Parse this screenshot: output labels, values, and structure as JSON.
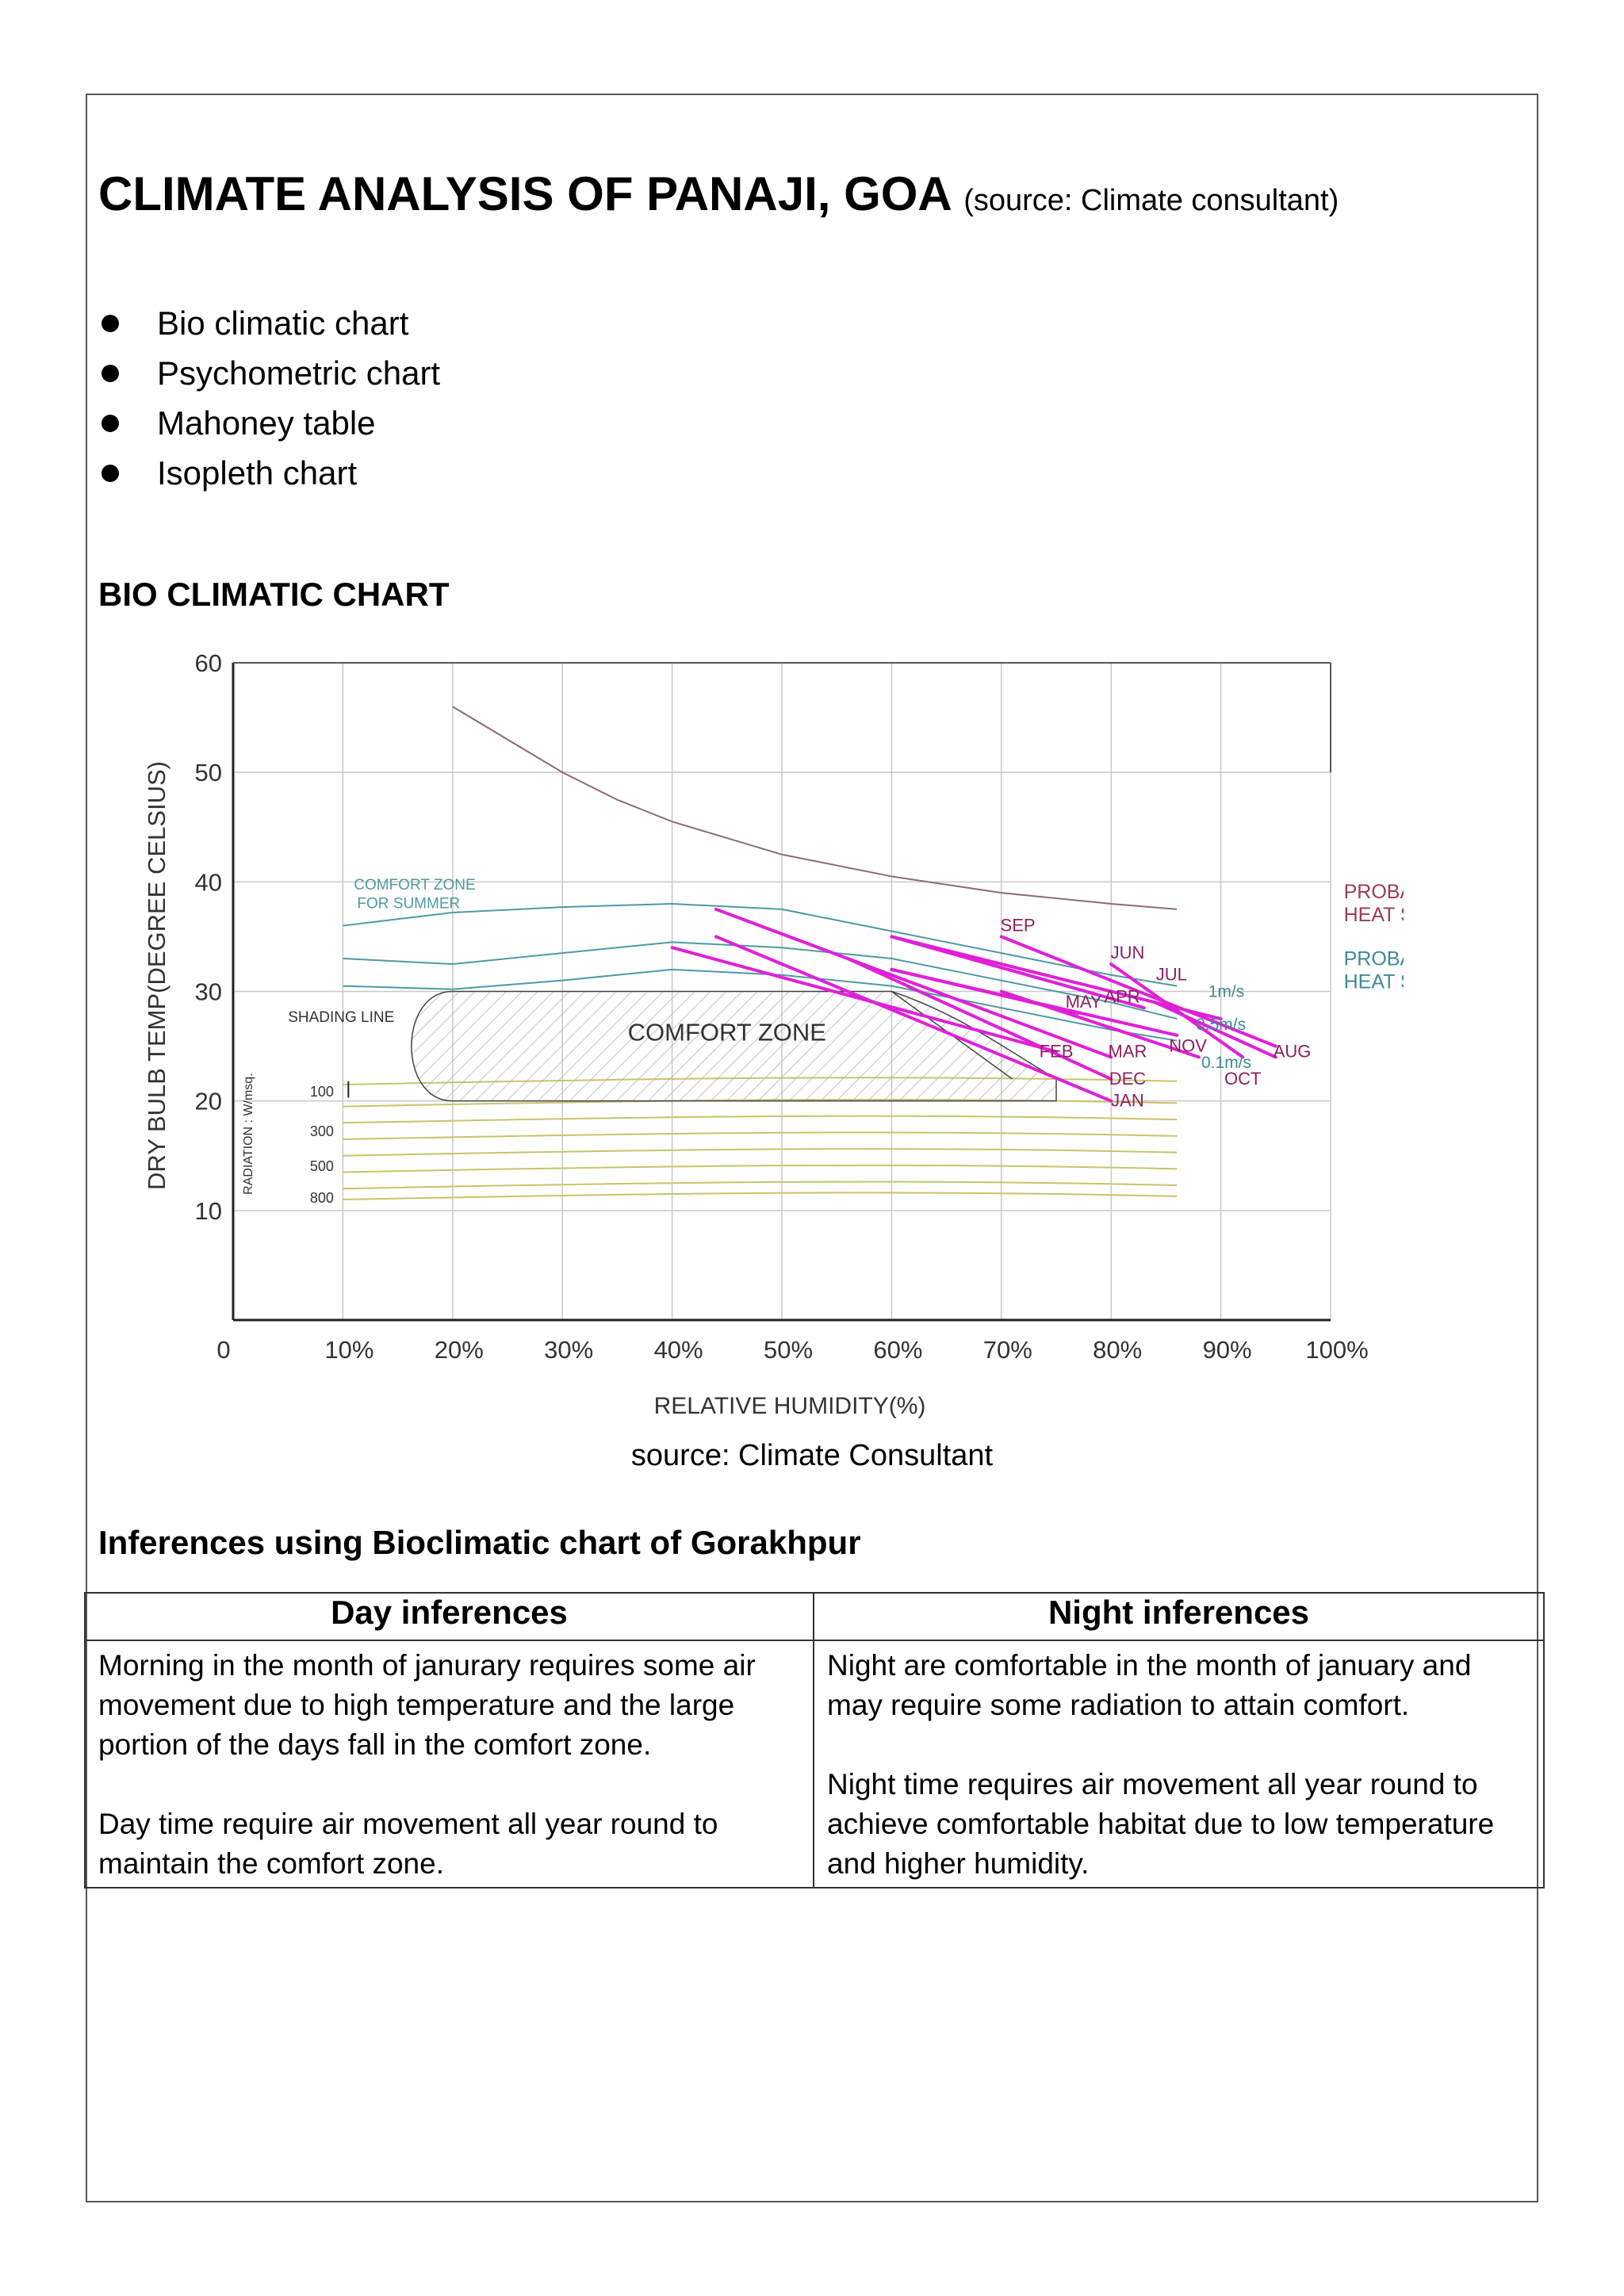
{
  "title": "CLIMATE ANALYSIS OF PANAJI, GOA",
  "title_source": "(source: Climate consultant)",
  "bullets": [
    "Bio climatic chart",
    "Psychometric chart",
    "Mahoney table",
    "Isopleth chart"
  ],
  "section_heading": "BIO CLIMATIC CHART",
  "chart_data": {
    "type": "line",
    "xlabel": "RELATIVE HUMIDITY(%)",
    "ylabel": "DRY BULB TEMP(DEGREE CELSIUS)",
    "xlim": [
      0,
      100
    ],
    "ylim": [
      0,
      60
    ],
    "x_ticks": [
      "0",
      "10%",
      "20%",
      "30%",
      "40%",
      "50%",
      "60%",
      "70%",
      "80%",
      "90%",
      "100%"
    ],
    "y_ticks": [
      "10",
      "20",
      "30",
      "40",
      "50",
      "60"
    ],
    "grid": true,
    "zone_labels": {
      "comfort_zone": "COMFORT ZONE",
      "comfort_summer_1": "COMFORT ZONE",
      "comfort_summer_2": "FOR SUMMER",
      "shading_line": "SHADING LINE",
      "heat_stroke_1a": "PROBABLE",
      "heat_stroke_1b": "HEAT STROKE",
      "heat_stroke_2a": "PROBABLE",
      "heat_stroke_2b": "HEAT STROKE"
    },
    "radiation_label": "RADIATION : W/msq.",
    "radiation_levels": [
      "100",
      "300",
      "500",
      "800"
    ],
    "wind_labels": [
      "1m/s",
      "0.5m/s",
      "0.1m/s"
    ],
    "colors": {
      "months": "#e020d8",
      "heat_stroke_1": "#9c3b55",
      "heat_stroke_2": "#3f8a96",
      "summer_zone": "#4e9aa2",
      "radiation": "#c9c46a",
      "top_curve": "#8a6a7a"
    },
    "series": [
      {
        "name": "JAN",
        "rh": [
          44,
          80
        ],
        "temp": [
          35,
          20
        ]
      },
      {
        "name": "FEB",
        "rh": [
          40,
          75
        ],
        "temp": [
          34,
          24.5
        ]
      },
      {
        "name": "MAR",
        "rh": [
          44,
          80
        ],
        "temp": [
          37.5,
          24
        ]
      },
      {
        "name": "APR",
        "rh": [
          60,
          83
        ],
        "temp": [
          35,
          28.5
        ]
      },
      {
        "name": "MAY",
        "rh": [
          60,
          77
        ],
        "temp": [
          32,
          28
        ]
      },
      {
        "name": "JUN",
        "rh": [
          80,
          92
        ],
        "temp": [
          32.5,
          24
        ]
      },
      {
        "name": "JUL",
        "rh": [
          84,
          95
        ],
        "temp": [
          29,
          24
        ]
      },
      {
        "name": "AUG",
        "rh": [
          70,
          95
        ],
        "temp": [
          35,
          25
        ]
      },
      {
        "name": "SEP",
        "rh": [
          60,
          90
        ],
        "temp": [
          35,
          27.5
        ]
      },
      {
        "name": "OCT",
        "rh": [
          70,
          88
        ],
        "temp": [
          30,
          24
        ]
      },
      {
        "name": "NOV",
        "rh": [
          60,
          86
        ],
        "temp": [
          32,
          26
        ]
      },
      {
        "name": "DEC",
        "rh": [
          56,
          80
        ],
        "temp": [
          33,
          22
        ]
      }
    ],
    "month_label_points": {
      "JAN": [
        81.5,
        19.5
      ],
      "FEB": [
        75,
        24
      ],
      "MAR": [
        81.5,
        24
      ],
      "APR": [
        81,
        29
      ],
      "MAY": [
        77.5,
        28.5
      ],
      "JUN": [
        81.5,
        33
      ],
      "JUL": [
        85.5,
        31
      ],
      "AUG": [
        96.5,
        24
      ],
      "SEP": [
        71.5,
        35.5
      ],
      "OCT": [
        92,
        21.5
      ],
      "NOV": [
        87,
        24.5
      ],
      "DEC": [
        81.5,
        21.5
      ]
    }
  },
  "chart_caption": "source: Climate Consultant",
  "inferences_heading": "Inferences using Bioclimatic chart of Gorakhpur",
  "table": {
    "headers": [
      "Day inferences",
      "Night inferences"
    ],
    "day": [
      "Morning in the month of janurary requires some air movement due to high temperature and the large portion of the days fall in the comfort zone.",
      "Day time require air movement all year round to maintain the comfort zone."
    ],
    "night": [
      "Night are comfortable in the month of january and may require some radiation to attain comfort.",
      "Night time requires air movement all year round to achieve comfortable habitat due to low temperature and higher humidity."
    ]
  }
}
